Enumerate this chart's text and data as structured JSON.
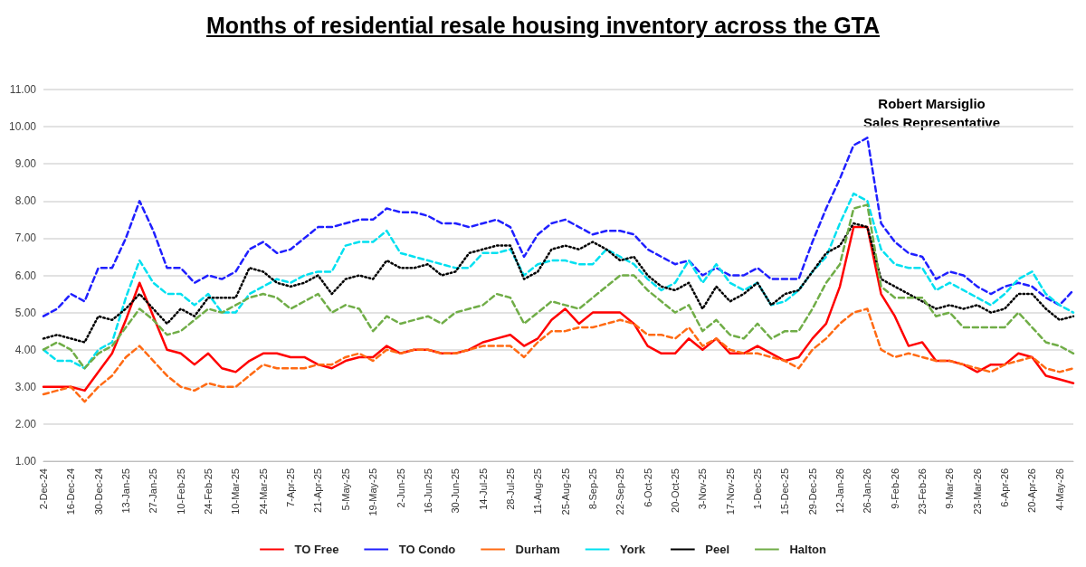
{
  "chart_data": {
    "type": "line",
    "title": "Months of residential resale housing inventory across the GTA",
    "annotations": [
      "Robert Marsiglio\nSales Representative"
    ],
    "categories": [
      "2-Dec-24",
      null,
      "16-Dec-24",
      null,
      "30-Dec-24",
      null,
      "13-Jan-25",
      null,
      "27-Jan-25",
      null,
      "10-Feb-25",
      null,
      "24-Feb-25",
      null,
      "10-Mar-25",
      null,
      "24-Mar-25",
      null,
      "7-Apr-25",
      null,
      "21-Apr-25",
      null,
      "5-May-25",
      null,
      "19-May-25",
      null,
      "2-Jun-25",
      null,
      "16-Jun-25",
      null,
      "30-Jun-25",
      null,
      "14-Jul-25",
      null,
      "28-Jul-25",
      null,
      "11-Aug-25",
      null,
      "25-Aug-25",
      null,
      "8-Sep-25",
      null,
      "22-Sep-25",
      null,
      "6-Oct-25",
      null,
      "20-Oct-25",
      null,
      "3-Nov-25",
      null,
      "17-Nov-25",
      null,
      "1-Dec-25",
      null,
      "15-Dec-25",
      null,
      "29-Dec-25",
      null,
      "12-Jan-26",
      null,
      "26-Jan-26",
      null,
      "9-Feb-26",
      null,
      "23-Feb-26",
      null,
      "9-Mar-26",
      null,
      "23-Mar-26",
      null,
      "6-Apr-26",
      null,
      "20-Apr-26",
      null,
      "4-May-26",
      null
    ],
    "series": [
      {
        "name": "TO Free",
        "color": "#ff0000",
        "line_style": "solid",
        "values": [
          3.0,
          3.0,
          3.0,
          2.9,
          3.4,
          3.9,
          4.8,
          5.8,
          4.9,
          4.0,
          3.9,
          3.6,
          3.9,
          3.5,
          3.4,
          3.7,
          3.9,
          3.9,
          3.8,
          3.8,
          3.6,
          3.5,
          3.7,
          3.8,
          3.8,
          4.1,
          3.9,
          4.0,
          4.0,
          3.9,
          3.9,
          4.0,
          4.2,
          4.3,
          4.4,
          4.1,
          4.3,
          4.8,
          5.1,
          4.7,
          5.0,
          5.0,
          5.0,
          4.7,
          4.1,
          3.9,
          3.9,
          4.3,
          4.0,
          4.3,
          3.9,
          3.9,
          4.1,
          3.9,
          3.7,
          3.8,
          4.3,
          4.7,
          5.7,
          7.3,
          7.3,
          5.5,
          4.9,
          4.1,
          4.2,
          3.7,
          3.7,
          3.6,
          3.4,
          3.6,
          3.6,
          3.9,
          3.8,
          3.3,
          3.2,
          3.1
        ]
      },
      {
        "name": "TO Condo",
        "color": "#1f1fff",
        "line_style": "dashed",
        "values": [
          4.9,
          5.1,
          5.5,
          5.3,
          6.2,
          6.2,
          7.0,
          8.0,
          7.2,
          6.2,
          6.2,
          5.8,
          6.0,
          5.9,
          6.1,
          6.7,
          6.9,
          6.6,
          6.7,
          7.0,
          7.3,
          7.3,
          7.4,
          7.5,
          7.5,
          7.8,
          7.7,
          7.7,
          7.6,
          7.4,
          7.4,
          7.3,
          7.4,
          7.5,
          7.3,
          6.5,
          7.1,
          7.4,
          7.5,
          7.3,
          7.1,
          7.2,
          7.2,
          7.1,
          6.7,
          6.5,
          6.3,
          6.4,
          6.0,
          6.2,
          6.0,
          6.0,
          6.2,
          5.9,
          5.9,
          5.9,
          6.9,
          7.8,
          8.6,
          9.5,
          9.7,
          7.4,
          6.9,
          6.6,
          6.5,
          5.9,
          6.1,
          6.0,
          5.7,
          5.5,
          5.7,
          5.8,
          5.7,
          5.4,
          5.2,
          5.6
        ]
      },
      {
        "name": "Durham",
        "color": "#ff6a13",
        "line_style": "dashed",
        "values": [
          2.8,
          2.9,
          3.0,
          2.6,
          3.0,
          3.3,
          3.8,
          4.1,
          3.7,
          3.3,
          3.0,
          2.9,
          3.1,
          3.0,
          3.0,
          3.3,
          3.6,
          3.5,
          3.5,
          3.5,
          3.6,
          3.6,
          3.8,
          3.9,
          3.7,
          4.0,
          3.9,
          4.0,
          4.0,
          3.9,
          3.9,
          4.0,
          4.1,
          4.1,
          4.1,
          3.8,
          4.2,
          4.5,
          4.5,
          4.6,
          4.6,
          4.7,
          4.8,
          4.7,
          4.4,
          4.4,
          4.3,
          4.6,
          4.1,
          4.3,
          4.0,
          3.9,
          3.9,
          3.8,
          3.7,
          3.5,
          4.0,
          4.3,
          4.7,
          5.0,
          5.1,
          4.0,
          3.8,
          3.9,
          3.8,
          3.7,
          3.7,
          3.6,
          3.5,
          3.4,
          3.6,
          3.7,
          3.8,
          3.5,
          3.4,
          3.5
        ]
      },
      {
        "name": "York",
        "color": "#00e0f0",
        "line_style": "dashed",
        "values": [
          4.0,
          3.7,
          3.7,
          3.5,
          4.0,
          4.2,
          5.4,
          6.4,
          5.8,
          5.5,
          5.5,
          5.2,
          5.5,
          5.0,
          5.0,
          5.5,
          5.7,
          5.9,
          5.8,
          6.0,
          6.1,
          6.1,
          6.8,
          6.9,
          6.9,
          7.2,
          6.6,
          6.5,
          6.4,
          6.3,
          6.2,
          6.2,
          6.6,
          6.6,
          6.7,
          6.0,
          6.3,
          6.4,
          6.4,
          6.3,
          6.3,
          6.7,
          6.5,
          6.3,
          5.9,
          5.6,
          5.8,
          6.4,
          5.8,
          6.3,
          5.8,
          5.6,
          5.8,
          5.2,
          5.3,
          5.6,
          6.1,
          6.5,
          7.4,
          8.2,
          8.0,
          6.7,
          6.3,
          6.2,
          6.2,
          5.6,
          5.8,
          5.6,
          5.4,
          5.2,
          5.5,
          5.9,
          6.1,
          5.5,
          5.2,
          5.0
        ]
      },
      {
        "name": "Peel",
        "color": "#000000",
        "line_style": "dotted",
        "values": [
          4.3,
          4.4,
          4.3,
          4.2,
          4.9,
          4.8,
          5.1,
          5.5,
          5.1,
          4.7,
          5.1,
          4.9,
          5.4,
          5.4,
          5.4,
          6.2,
          6.1,
          5.8,
          5.7,
          5.8,
          6.0,
          5.5,
          5.9,
          6.0,
          5.9,
          6.4,
          6.2,
          6.2,
          6.3,
          6.0,
          6.1,
          6.6,
          6.7,
          6.8,
          6.8,
          5.9,
          6.1,
          6.7,
          6.8,
          6.7,
          6.9,
          6.7,
          6.4,
          6.5,
          6.0,
          5.7,
          5.6,
          5.8,
          5.1,
          5.7,
          5.3,
          5.5,
          5.8,
          5.2,
          5.5,
          5.6,
          6.1,
          6.6,
          6.8,
          7.4,
          7.3,
          5.9,
          5.7,
          5.5,
          5.3,
          5.1,
          5.2,
          5.1,
          5.2,
          5.0,
          5.1,
          5.5,
          5.5,
          5.1,
          4.8,
          4.9
        ]
      },
      {
        "name": "Halton",
        "color": "#70ad47",
        "line_style": "dashed",
        "values": [
          4.0,
          4.2,
          4.0,
          3.5,
          3.9,
          4.1,
          4.6,
          5.1,
          4.8,
          4.4,
          4.5,
          4.8,
          5.1,
          5.0,
          5.2,
          5.4,
          5.5,
          5.4,
          5.1,
          5.3,
          5.5,
          5.0,
          5.2,
          5.1,
          4.5,
          4.9,
          4.7,
          4.8,
          4.9,
          4.7,
          5.0,
          5.1,
          5.2,
          5.5,
          5.4,
          4.7,
          5.0,
          5.3,
          5.2,
          5.1,
          5.4,
          5.7,
          6.0,
          6.0,
          5.6,
          5.3,
          5.0,
          5.2,
          4.5,
          4.8,
          4.4,
          4.3,
          4.7,
          4.3,
          4.5,
          4.5,
          5.1,
          5.8,
          6.3,
          7.8,
          7.9,
          5.7,
          5.4,
          5.4,
          5.4,
          4.9,
          5.0,
          4.6,
          4.6,
          4.6,
          4.6,
          5.0,
          4.6,
          4.2,
          4.1,
          3.9
        ]
      }
    ],
    "ylim": [
      1,
      11
    ],
    "yticks": [
      {
        "value": 1,
        "label": "1.00"
      },
      {
        "value": 2,
        "label": "2.00"
      },
      {
        "value": 3,
        "label": "3.00"
      },
      {
        "value": 4,
        "label": "4.00"
      },
      {
        "value": 5,
        "label": "5.00"
      },
      {
        "value": 6,
        "label": "6.00"
      },
      {
        "value": 7,
        "label": "7.00"
      },
      {
        "value": 8,
        "label": "8.00"
      },
      {
        "value": 9,
        "label": "9.00"
      },
      {
        "value": 10,
        "label": "10.00"
      },
      {
        "value": 11,
        "label": "11.00"
      }
    ],
    "grid": "y",
    "legend": "bottom",
    "marker": "none"
  }
}
